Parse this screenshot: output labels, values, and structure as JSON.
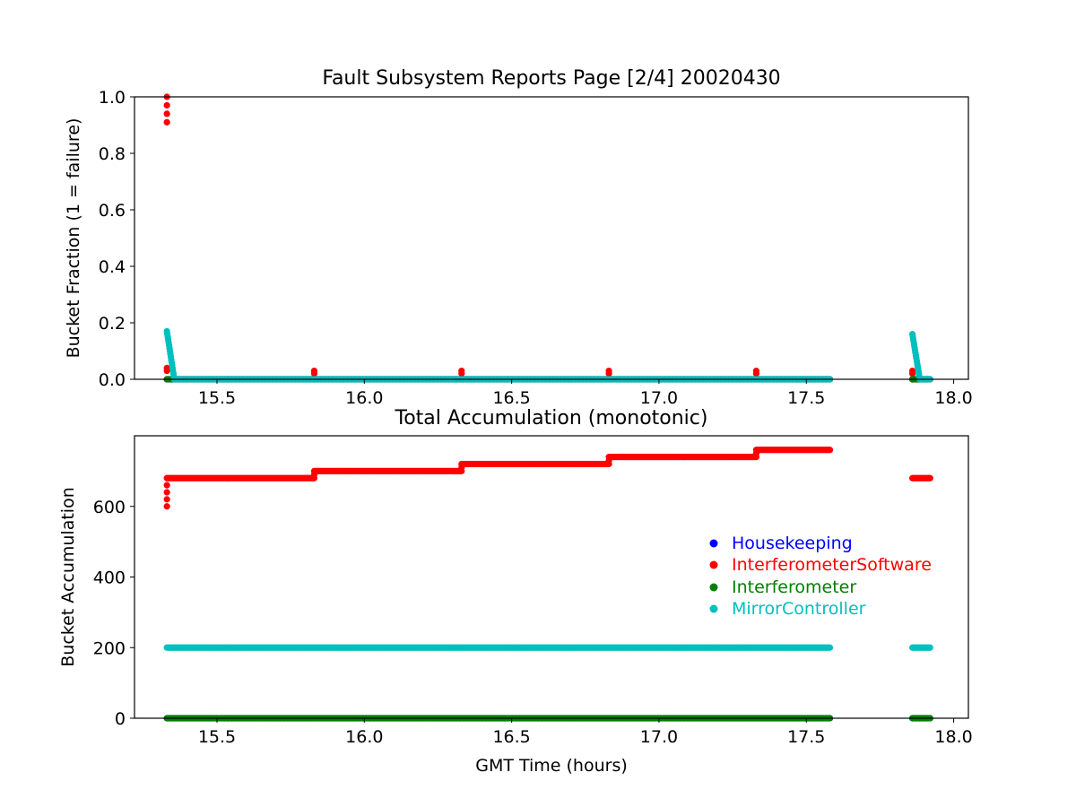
{
  "chart_data": [
    {
      "type": "scatter",
      "title": "Fault Subsystem Reports Page [2/4] 20020430",
      "xlabel": "",
      "ylabel": "Bucket Fraction (1 = failure)",
      "xlim": [
        15.22,
        18.05
      ],
      "ylim": [
        0,
        1.0
      ],
      "xticks": [
        15.5,
        16.0,
        16.5,
        17.0,
        17.5,
        18.0
      ],
      "xtick_labels": [
        "15.5",
        "16.0",
        "16.5",
        "17.0",
        "17.5",
        "18.0"
      ],
      "yticks": [
        0.0,
        0.2,
        0.4,
        0.6,
        0.8,
        1.0
      ],
      "ytick_labels": [
        "0.0",
        "0.2",
        "0.4",
        "0.6",
        "0.8",
        "1.0"
      ],
      "grid": false,
      "series": [
        {
          "name": "Housekeeping",
          "color": "#0000ff",
          "segments": [
            {
              "x": [
                15.33,
                17.58
              ],
              "y": [
                0.0,
                0.0
              ],
              "step": 0.004
            },
            {
              "x": [
                17.86,
                17.92
              ],
              "y": [
                0.0,
                0.0
              ],
              "step": 0.004
            }
          ],
          "points": []
        },
        {
          "name": "InterferometerSoftware",
          "color": "#ff0000",
          "segments": [
            {
              "x": [
                15.33,
                17.58
              ],
              "y": [
                0.0,
                0.0
              ],
              "step": 0.004
            },
            {
              "x": [
                17.86,
                17.92
              ],
              "y": [
                0.0,
                0.0
              ],
              "step": 0.004
            }
          ],
          "points": [
            [
              15.33,
              1.0
            ],
            [
              15.33,
              0.97
            ],
            [
              15.33,
              0.94
            ],
            [
              15.33,
              0.91
            ],
            [
              15.33,
              0.04
            ],
            [
              15.33,
              0.03
            ],
            [
              15.83,
              0.03
            ],
            [
              15.83,
              0.02
            ],
            [
              16.33,
              0.03
            ],
            [
              16.33,
              0.02
            ],
            [
              16.83,
              0.03
            ],
            [
              16.83,
              0.02
            ],
            [
              17.33,
              0.03
            ],
            [
              17.33,
              0.02
            ],
            [
              17.86,
              0.03
            ],
            [
              17.86,
              0.02
            ]
          ]
        },
        {
          "name": "Interferometer",
          "color": "#008000",
          "segments": [
            {
              "x": [
                15.33,
                17.58
              ],
              "y": [
                0.0,
                0.0
              ],
              "step": 0.004
            },
            {
              "x": [
                17.86,
                17.92
              ],
              "y": [
                0.0,
                0.0
              ],
              "step": 0.004
            }
          ],
          "points": []
        },
        {
          "name": "MirrorController",
          "color": "#00bfbf",
          "segments": [
            {
              "x": [
                15.33,
                15.355
              ],
              "y": [
                0.17,
                0.0
              ],
              "step": 0.0015
            },
            {
              "x": [
                15.355,
                17.58
              ],
              "y": [
                0.0,
                0.0
              ],
              "step": 0.004
            },
            {
              "x": [
                17.86,
                17.885
              ],
              "y": [
                0.16,
                0.0
              ],
              "step": 0.0015
            },
            {
              "x": [
                17.885,
                17.92
              ],
              "y": [
                0.0,
                0.0
              ],
              "step": 0.004
            }
          ],
          "points": []
        }
      ]
    },
    {
      "type": "scatter",
      "title": "Total Accumulation (monotonic)",
      "xlabel": "GMT Time (hours)",
      "ylabel": "Bucket Accumulation",
      "xlim": [
        15.22,
        18.05
      ],
      "ylim": [
        0,
        800
      ],
      "xticks": [
        15.5,
        16.0,
        16.5,
        17.0,
        17.5,
        18.0
      ],
      "xtick_labels": [
        "15.5",
        "16.0",
        "16.5",
        "17.0",
        "17.5",
        "18.0"
      ],
      "yticks": [
        0,
        200,
        400,
        600
      ],
      "ytick_labels": [
        "0",
        "200",
        "400",
        "600"
      ],
      "grid": false,
      "legend": {
        "placement": "center-right",
        "entries": [
          {
            "label": "Housekeeping",
            "color": "#0000ff"
          },
          {
            "label": "InterferometerSoftware",
            "color": "#ff0000"
          },
          {
            "label": "Interferometer",
            "color": "#008000"
          },
          {
            "label": "MirrorController",
            "color": "#00bfbf"
          }
        ]
      },
      "series": [
        {
          "name": "Housekeeping",
          "color": "#0000ff",
          "segments": [
            {
              "x": [
                15.33,
                17.58
              ],
              "y": [
                0,
                0
              ],
              "step": 0.004
            },
            {
              "x": [
                17.86,
                17.92
              ],
              "y": [
                0,
                0
              ],
              "step": 0.004
            }
          ],
          "points": []
        },
        {
          "name": "InterferometerSoftware",
          "color": "#ff0000",
          "segments": [
            {
              "x": [
                15.33,
                15.83
              ],
              "y": [
                680,
                680
              ],
              "step": 0.004
            },
            {
              "x": [
                15.83,
                16.33
              ],
              "y": [
                700,
                700
              ],
              "step": 0.004
            },
            {
              "x": [
                16.33,
                16.83
              ],
              "y": [
                720,
                720
              ],
              "step": 0.004
            },
            {
              "x": [
                16.83,
                17.33
              ],
              "y": [
                740,
                740
              ],
              "step": 0.004
            },
            {
              "x": [
                17.33,
                17.58
              ],
              "y": [
                760,
                760
              ],
              "step": 0.004
            },
            {
              "x": [
                17.86,
                17.92
              ],
              "y": [
                680,
                680
              ],
              "step": 0.004
            }
          ],
          "points": [
            [
              15.33,
              600
            ],
            [
              15.33,
              620
            ],
            [
              15.33,
              640
            ],
            [
              15.33,
              660
            ],
            [
              15.83,
              690
            ],
            [
              16.33,
              710
            ],
            [
              16.83,
              730
            ],
            [
              17.33,
              750
            ]
          ]
        },
        {
          "name": "Interferometer",
          "color": "#008000",
          "segments": [
            {
              "x": [
                15.33,
                17.58
              ],
              "y": [
                0,
                0
              ],
              "step": 0.004
            },
            {
              "x": [
                17.86,
                17.92
              ],
              "y": [
                0,
                0
              ],
              "step": 0.004
            }
          ],
          "points": []
        },
        {
          "name": "MirrorController",
          "color": "#00bfbf",
          "segments": [
            {
              "x": [
                15.33,
                17.58
              ],
              "y": [
                200,
                200
              ],
              "step": 0.004
            },
            {
              "x": [
                17.86,
                17.92
              ],
              "y": [
                200,
                200
              ],
              "step": 0.004
            }
          ],
          "points": []
        }
      ]
    }
  ]
}
